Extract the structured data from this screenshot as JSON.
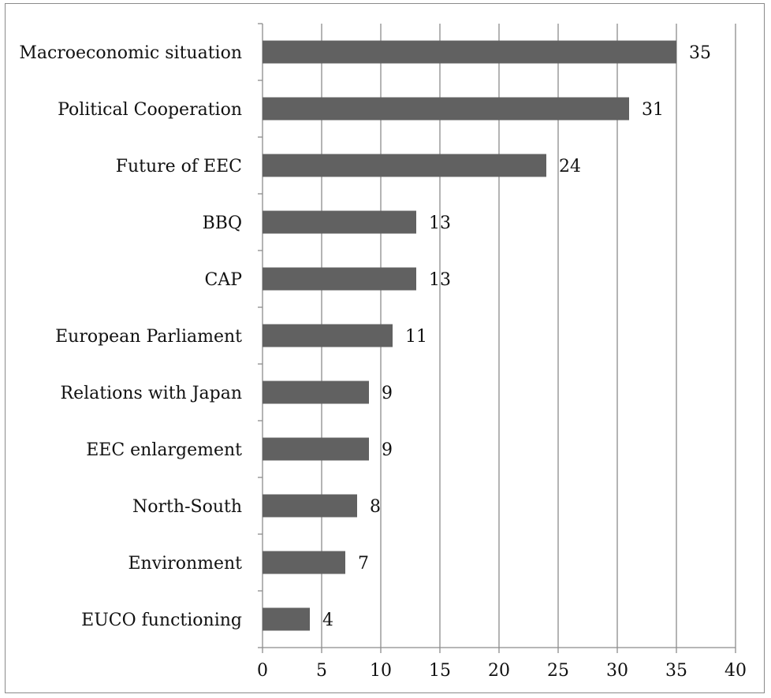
{
  "chart_data": {
    "type": "bar",
    "orientation": "horizontal",
    "categories": [
      "Macroeconomic situation",
      "Political Cooperation",
      "Future of EEC",
      "BBQ",
      "CAP",
      "European Parliament",
      "Relations with Japan",
      "EEC enlargement",
      "North-South",
      "Environment",
      "EUCO functioning"
    ],
    "values": [
      35,
      31,
      24,
      13,
      13,
      11,
      9,
      9,
      8,
      7,
      4
    ],
    "data_labels": [
      "35",
      "31",
      "24",
      "13",
      "13",
      "11",
      "9",
      "9",
      "8",
      "7",
      "4"
    ],
    "xlim": [
      0,
      40
    ],
    "x_ticks": [
      "0",
      "5",
      "10",
      "15",
      "20",
      "25",
      "30",
      "35",
      "40"
    ],
    "grid": "vertical",
    "legend": "none",
    "title": "",
    "xlabel": "",
    "ylabel": "",
    "colors": {
      "bar": "#616161",
      "grid": "#8c8c8c",
      "axis": "#8c8c8c",
      "text": "#111111"
    }
  }
}
